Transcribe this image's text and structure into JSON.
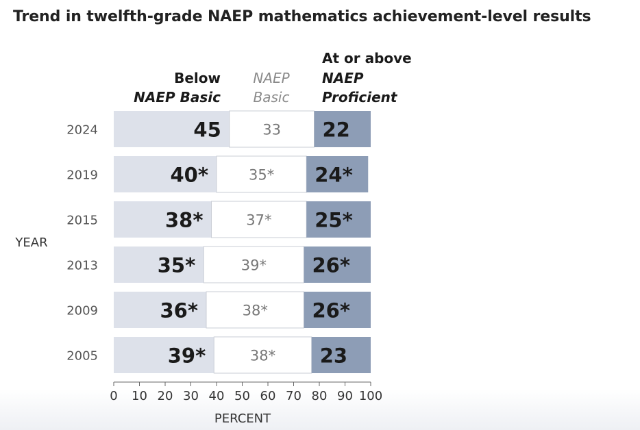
{
  "title": "Trend in twelfth-grade NAEP mathematics achievement-level results",
  "legend": {
    "below": [
      "Below",
      "NAEP Basic"
    ],
    "basic": [
      "NAEP",
      "Basic"
    ],
    "proficient": [
      "At or above",
      "NAEP",
      "Proficient"
    ]
  },
  "colors": {
    "below": "#dde1ea",
    "basic": "#ffffff",
    "proficient": "#8d9db6",
    "border": "#c9cdd6"
  },
  "chart_data": {
    "type": "bar",
    "orientation": "horizontal",
    "stacked": true,
    "title": "Trend in twelfth-grade NAEP mathematics achievement-level results",
    "ylabel": "YEAR",
    "xlabel": "PERCENT",
    "xlim": [
      0,
      100
    ],
    "xticks": [
      0,
      10,
      20,
      30,
      40,
      50,
      60,
      70,
      80,
      90,
      100
    ],
    "categories": [
      "2024",
      "2019",
      "2015",
      "2013",
      "2009",
      "2005"
    ],
    "series": [
      {
        "name": "Below NAEP Basic",
        "values": [
          45,
          40,
          38,
          35,
          36,
          39
        ],
        "labels": [
          "45",
          "40*",
          "38*",
          "35*",
          "36*",
          "39*"
        ]
      },
      {
        "name": "NAEP Basic",
        "values": [
          33,
          35,
          37,
          39,
          38,
          38
        ],
        "labels": [
          "33",
          "35*",
          "37*",
          "39*",
          "38*",
          "38*"
        ]
      },
      {
        "name": "At or above NAEP Proficient",
        "values": [
          22,
          24,
          25,
          26,
          26,
          23
        ],
        "labels": [
          "22",
          "24*",
          "25*",
          "26*",
          "26*",
          "23"
        ]
      }
    ]
  }
}
